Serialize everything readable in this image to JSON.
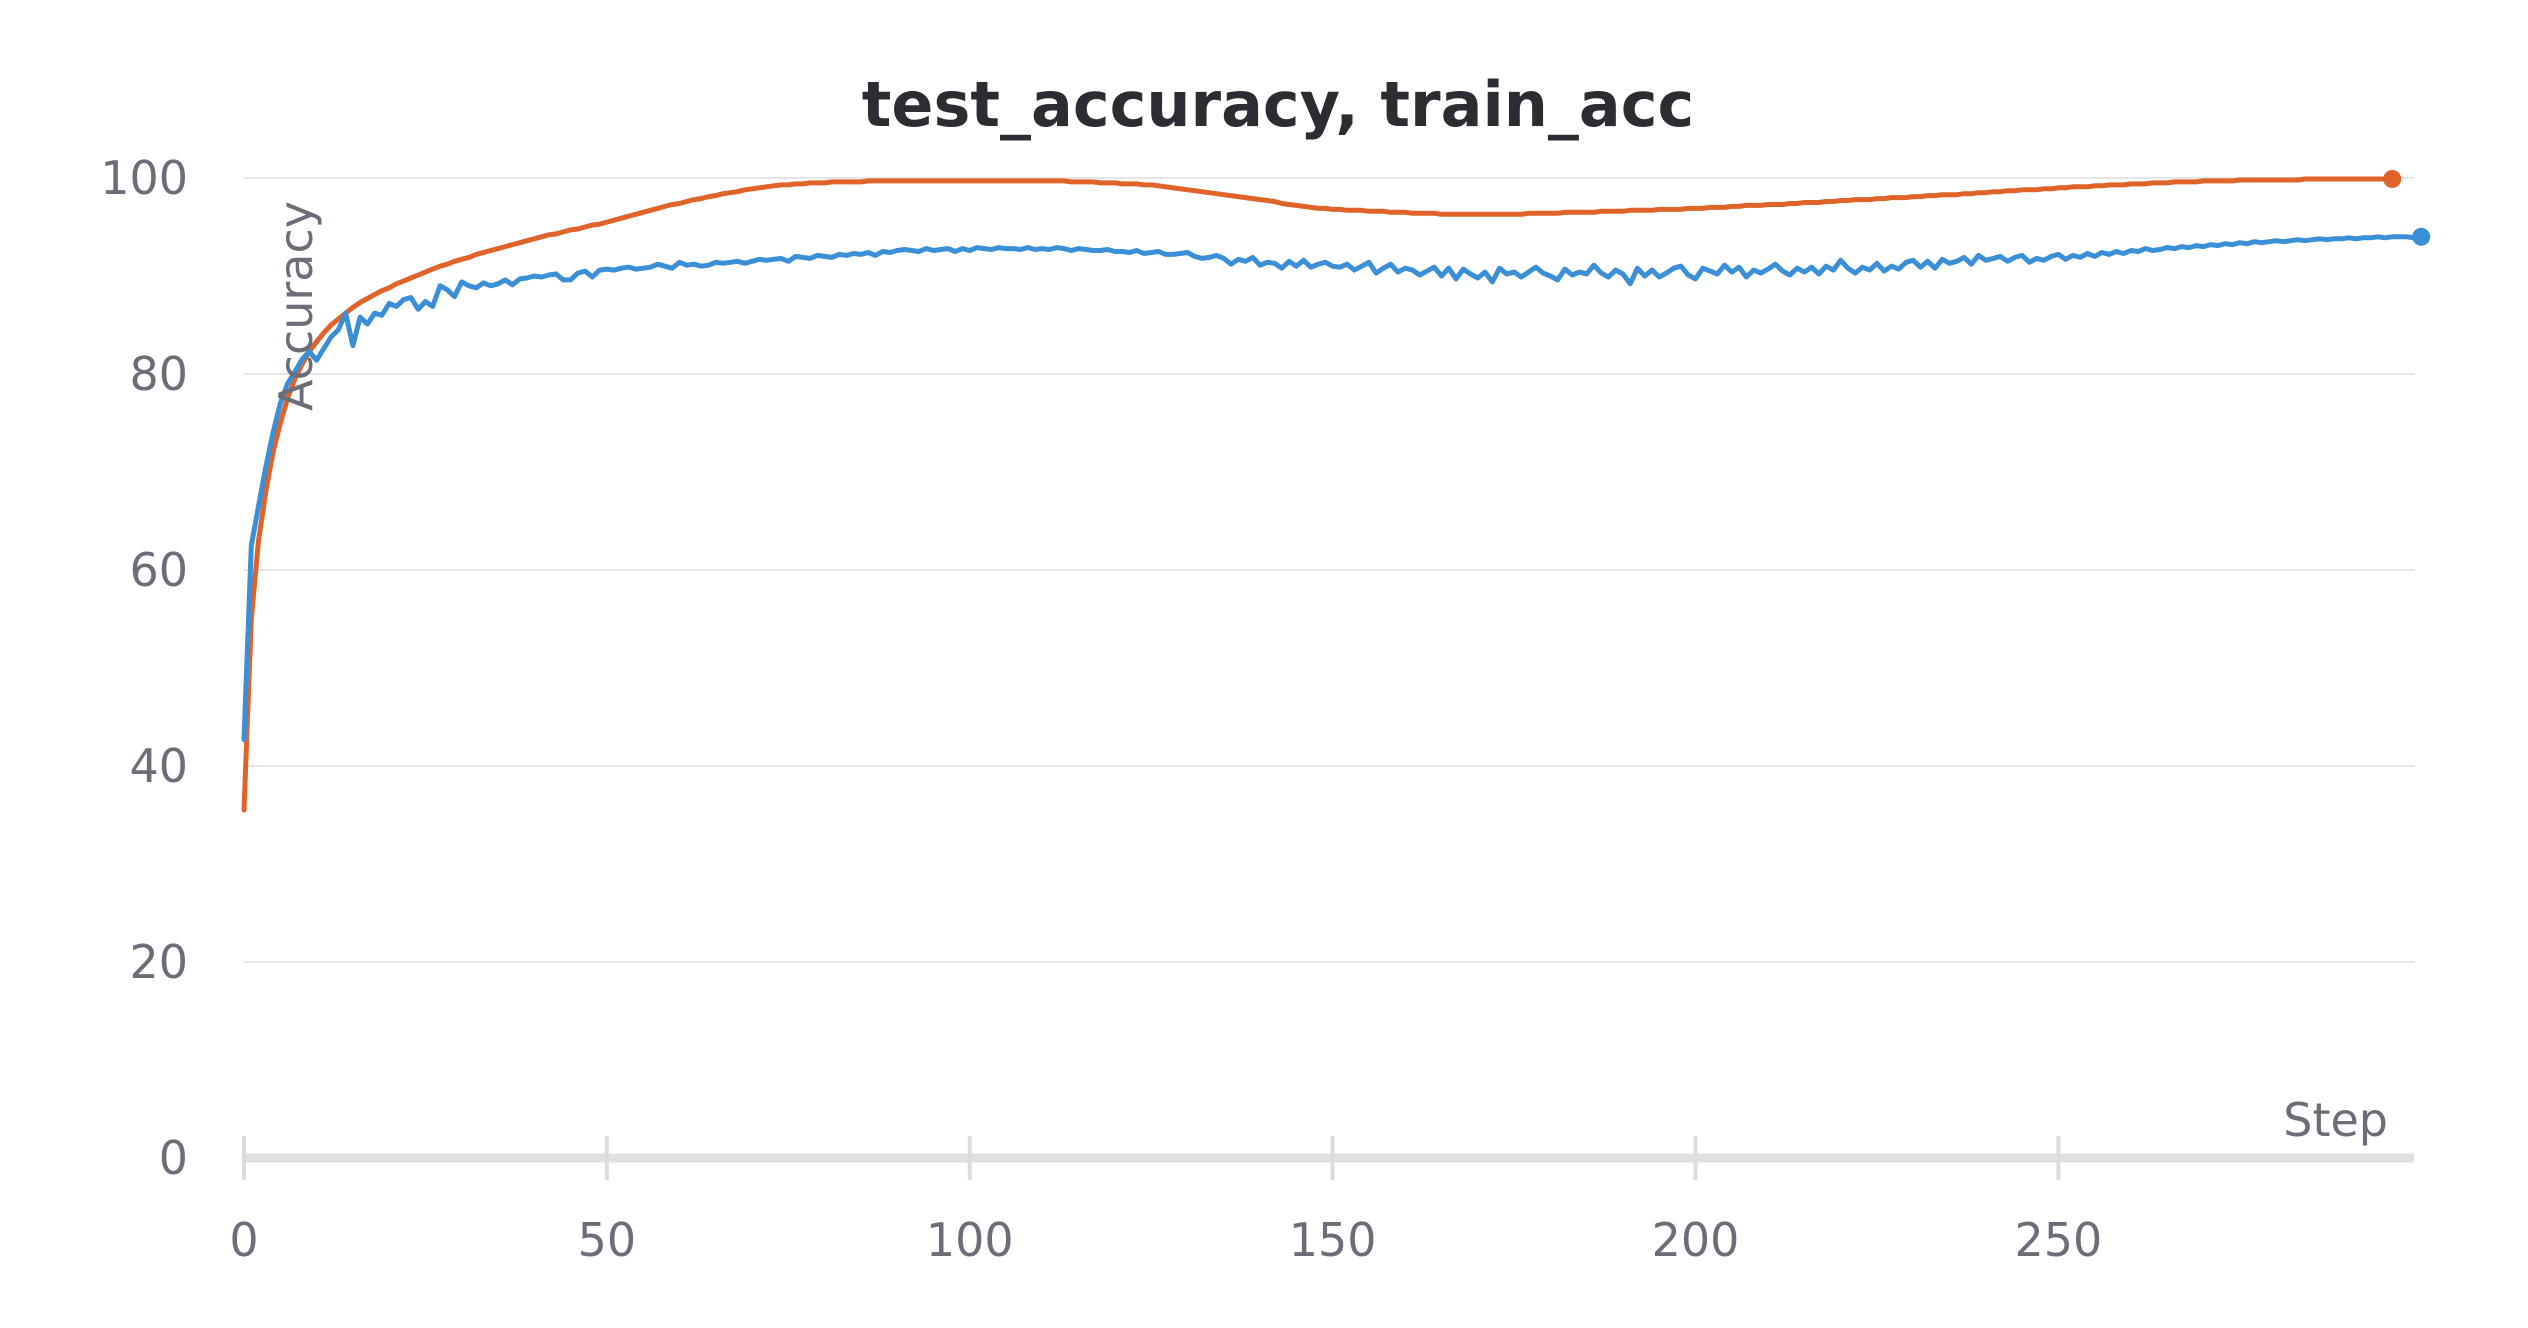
{
  "chart_data": {
    "type": "line",
    "title": "test_accuracy, train_acc",
    "xlabel": "Step",
    "ylabel": "Accuracy",
    "xlim": [
      0,
      299
    ],
    "ylim": [
      0,
      100
    ],
    "x_ticks": [
      0,
      50,
      100,
      150,
      200,
      250
    ],
    "y_ticks": [
      0,
      20,
      40,
      60,
      80,
      100
    ],
    "grid": true,
    "legend": "none",
    "series": [
      {
        "color": "#e0632a",
        "values": [
          35.5,
          55.0,
          63.0,
          68.0,
          72.0,
          75.0,
          77.5,
          79.5,
          81.0,
          82.3,
          83.3,
          84.2,
          85.0,
          85.6,
          86.2,
          86.8,
          87.3,
          87.7,
          88.1,
          88.5,
          88.8,
          89.2,
          89.5,
          89.8,
          90.1,
          90.4,
          90.7,
          91.0,
          91.2,
          91.5,
          91.7,
          91.9,
          92.2,
          92.4,
          92.6,
          92.8,
          93.0,
          93.2,
          93.4,
          93.6,
          93.8,
          94.0,
          94.2,
          94.3,
          94.5,
          94.7,
          94.8,
          95.0,
          95.2,
          95.3,
          95.5,
          95.7,
          95.9,
          96.1,
          96.3,
          96.5,
          96.7,
          96.9,
          97.1,
          97.3,
          97.4,
          97.6,
          97.8,
          97.9,
          98.1,
          98.2,
          98.4,
          98.5,
          98.6,
          98.8,
          98.9,
          99.0,
          99.1,
          99.2,
          99.3,
          99.3,
          99.4,
          99.4,
          99.5,
          99.5,
          99.5,
          99.6,
          99.6,
          99.6,
          99.6,
          99.6,
          99.7,
          99.7,
          99.7,
          99.7,
          99.7,
          99.7,
          99.7,
          99.7,
          99.7,
          99.7,
          99.7,
          99.7,
          99.7,
          99.7,
          99.7,
          99.7,
          99.7,
          99.7,
          99.7,
          99.7,
          99.7,
          99.7,
          99.7,
          99.7,
          99.7,
          99.7,
          99.7,
          99.7,
          99.6,
          99.6,
          99.6,
          99.6,
          99.5,
          99.5,
          99.5,
          99.4,
          99.4,
          99.4,
          99.3,
          99.3,
          99.2,
          99.1,
          99.0,
          98.9,
          98.8,
          98.7,
          98.6,
          98.5,
          98.4,
          98.3,
          98.2,
          98.1,
          98.0,
          97.9,
          97.8,
          97.7,
          97.6,
          97.4,
          97.3,
          97.2,
          97.1,
          97.0,
          96.9,
          96.9,
          96.8,
          96.8,
          96.7,
          96.7,
          96.7,
          96.6,
          96.6,
          96.6,
          96.5,
          96.5,
          96.5,
          96.4,
          96.4,
          96.4,
          96.4,
          96.3,
          96.3,
          96.3,
          96.3,
          96.3,
          96.3,
          96.3,
          96.3,
          96.3,
          96.3,
          96.3,
          96.3,
          96.4,
          96.4,
          96.4,
          96.4,
          96.4,
          96.5,
          96.5,
          96.5,
          96.5,
          96.5,
          96.6,
          96.6,
          96.6,
          96.6,
          96.7,
          96.7,
          96.7,
          96.7,
          96.8,
          96.8,
          96.8,
          96.8,
          96.9,
          96.9,
          96.9,
          97.0,
          97.0,
          97.0,
          97.1,
          97.1,
          97.2,
          97.2,
          97.2,
          97.3,
          97.3,
          97.3,
          97.4,
          97.4,
          97.5,
          97.5,
          97.5,
          97.6,
          97.6,
          97.7,
          97.7,
          97.8,
          97.8,
          97.8,
          97.9,
          97.9,
          98.0,
          98.0,
          98.0,
          98.1,
          98.1,
          98.2,
          98.2,
          98.3,
          98.3,
          98.3,
          98.4,
          98.4,
          98.5,
          98.5,
          98.6,
          98.6,
          98.7,
          98.7,
          98.8,
          98.8,
          98.8,
          98.9,
          98.9,
          99.0,
          99.0,
          99.1,
          99.1,
          99.1,
          99.2,
          99.2,
          99.3,
          99.3,
          99.3,
          99.4,
          99.4,
          99.4,
          99.5,
          99.5,
          99.5,
          99.6,
          99.6,
          99.6,
          99.6,
          99.7,
          99.7,
          99.7,
          99.7,
          99.7,
          99.8,
          99.8,
          99.8,
          99.8,
          99.8,
          99.8,
          99.8,
          99.8,
          99.8,
          99.9,
          99.9,
          99.9,
          99.9,
          99.9,
          99.9,
          99.9,
          99.9,
          99.9,
          99.9,
          99.9,
          99.9,
          99.9
        ]
      },
      {
        "color": "#3a8fd6",
        "values": [
          42.7,
          62.5,
          66.5,
          70.5,
          74.0,
          77.0,
          79.0,
          80.2,
          81.5,
          82.3,
          81.4,
          82.6,
          83.8,
          84.5,
          86.2,
          82.9,
          85.8,
          85.1,
          86.2,
          86.0,
          87.2,
          86.9,
          87.6,
          87.8,
          86.6,
          87.4,
          86.9,
          89.0,
          88.6,
          87.9,
          89.4,
          89.0,
          88.8,
          89.3,
          89.0,
          89.2,
          89.6,
          89.1,
          89.7,
          89.8,
          90.0,
          89.9,
          90.1,
          90.2,
          89.6,
          89.6,
          90.3,
          90.5,
          89.9,
          90.6,
          90.7,
          90.6,
          90.8,
          90.9,
          90.7,
          90.8,
          90.9,
          91.2,
          91.0,
          90.8,
          91.4,
          91.1,
          91.2,
          91.0,
          91.1,
          91.4,
          91.3,
          91.4,
          91.5,
          91.3,
          91.5,
          91.7,
          91.6,
          91.7,
          91.8,
          91.5,
          92.0,
          91.9,
          91.8,
          92.1,
          92.0,
          91.9,
          92.2,
          92.1,
          92.3,
          92.2,
          92.4,
          92.1,
          92.5,
          92.4,
          92.6,
          92.7,
          92.6,
          92.5,
          92.8,
          92.6,
          92.7,
          92.8,
          92.5,
          92.8,
          92.6,
          92.9,
          92.8,
          92.7,
          92.9,
          92.8,
          92.8,
          92.7,
          92.9,
          92.7,
          92.8,
          92.7,
          92.9,
          92.8,
          92.6,
          92.8,
          92.7,
          92.6,
          92.6,
          92.7,
          92.5,
          92.5,
          92.4,
          92.6,
          92.3,
          92.4,
          92.5,
          92.2,
          92.2,
          92.3,
          92.4,
          92.0,
          91.8,
          91.9,
          92.1,
          91.8,
          91.2,
          91.7,
          91.5,
          91.9,
          91.1,
          91.4,
          91.3,
          90.8,
          91.5,
          91.0,
          91.6,
          90.9,
          91.2,
          91.4,
          91.0,
          90.9,
          91.2,
          90.6,
          91.0,
          91.4,
          90.3,
          90.8,
          91.2,
          90.4,
          90.8,
          90.6,
          90.1,
          90.5,
          90.9,
          90.0,
          90.8,
          89.7,
          90.7,
          90.2,
          89.8,
          90.4,
          89.4,
          90.8,
          90.2,
          90.4,
          89.9,
          90.4,
          90.9,
          90.3,
          90.0,
          89.6,
          90.7,
          90.1,
          90.4,
          90.2,
          91.1,
          90.3,
          89.9,
          90.6,
          90.2,
          89.2,
          90.8,
          90.0,
          90.6,
          89.9,
          90.3,
          90.8,
          91.0,
          90.1,
          89.7,
          90.8,
          90.5,
          90.2,
          91.1,
          90.4,
          90.9,
          89.9,
          90.6,
          90.3,
          90.7,
          91.2,
          90.5,
          90.1,
          90.8,
          90.4,
          90.9,
          90.2,
          91.0,
          90.6,
          91.6,
          90.8,
          90.3,
          90.9,
          90.6,
          91.3,
          90.5,
          91.0,
          90.7,
          91.4,
          91.6,
          90.9,
          91.5,
          90.8,
          91.7,
          91.3,
          91.5,
          91.9,
          91.2,
          92.1,
          91.6,
          91.8,
          92.0,
          91.5,
          91.9,
          92.1,
          91.4,
          91.8,
          91.6,
          92.0,
          92.2,
          91.7,
          92.1,
          91.9,
          92.3,
          92.0,
          92.4,
          92.2,
          92.5,
          92.3,
          92.6,
          92.5,
          92.8,
          92.6,
          92.7,
          92.9,
          92.8,
          93.0,
          92.9,
          93.1,
          93.0,
          93.2,
          93.1,
          93.3,
          93.2,
          93.4,
          93.3,
          93.5,
          93.4,
          93.5,
          93.6,
          93.5,
          93.6,
          93.7,
          93.6,
          93.7,
          93.8,
          93.7,
          93.8,
          93.8,
          93.9,
          93.8,
          93.9,
          93.9,
          94.0,
          93.9,
          94.0,
          94.0,
          94.0,
          93.9,
          94.0
        ]
      }
    ]
  }
}
